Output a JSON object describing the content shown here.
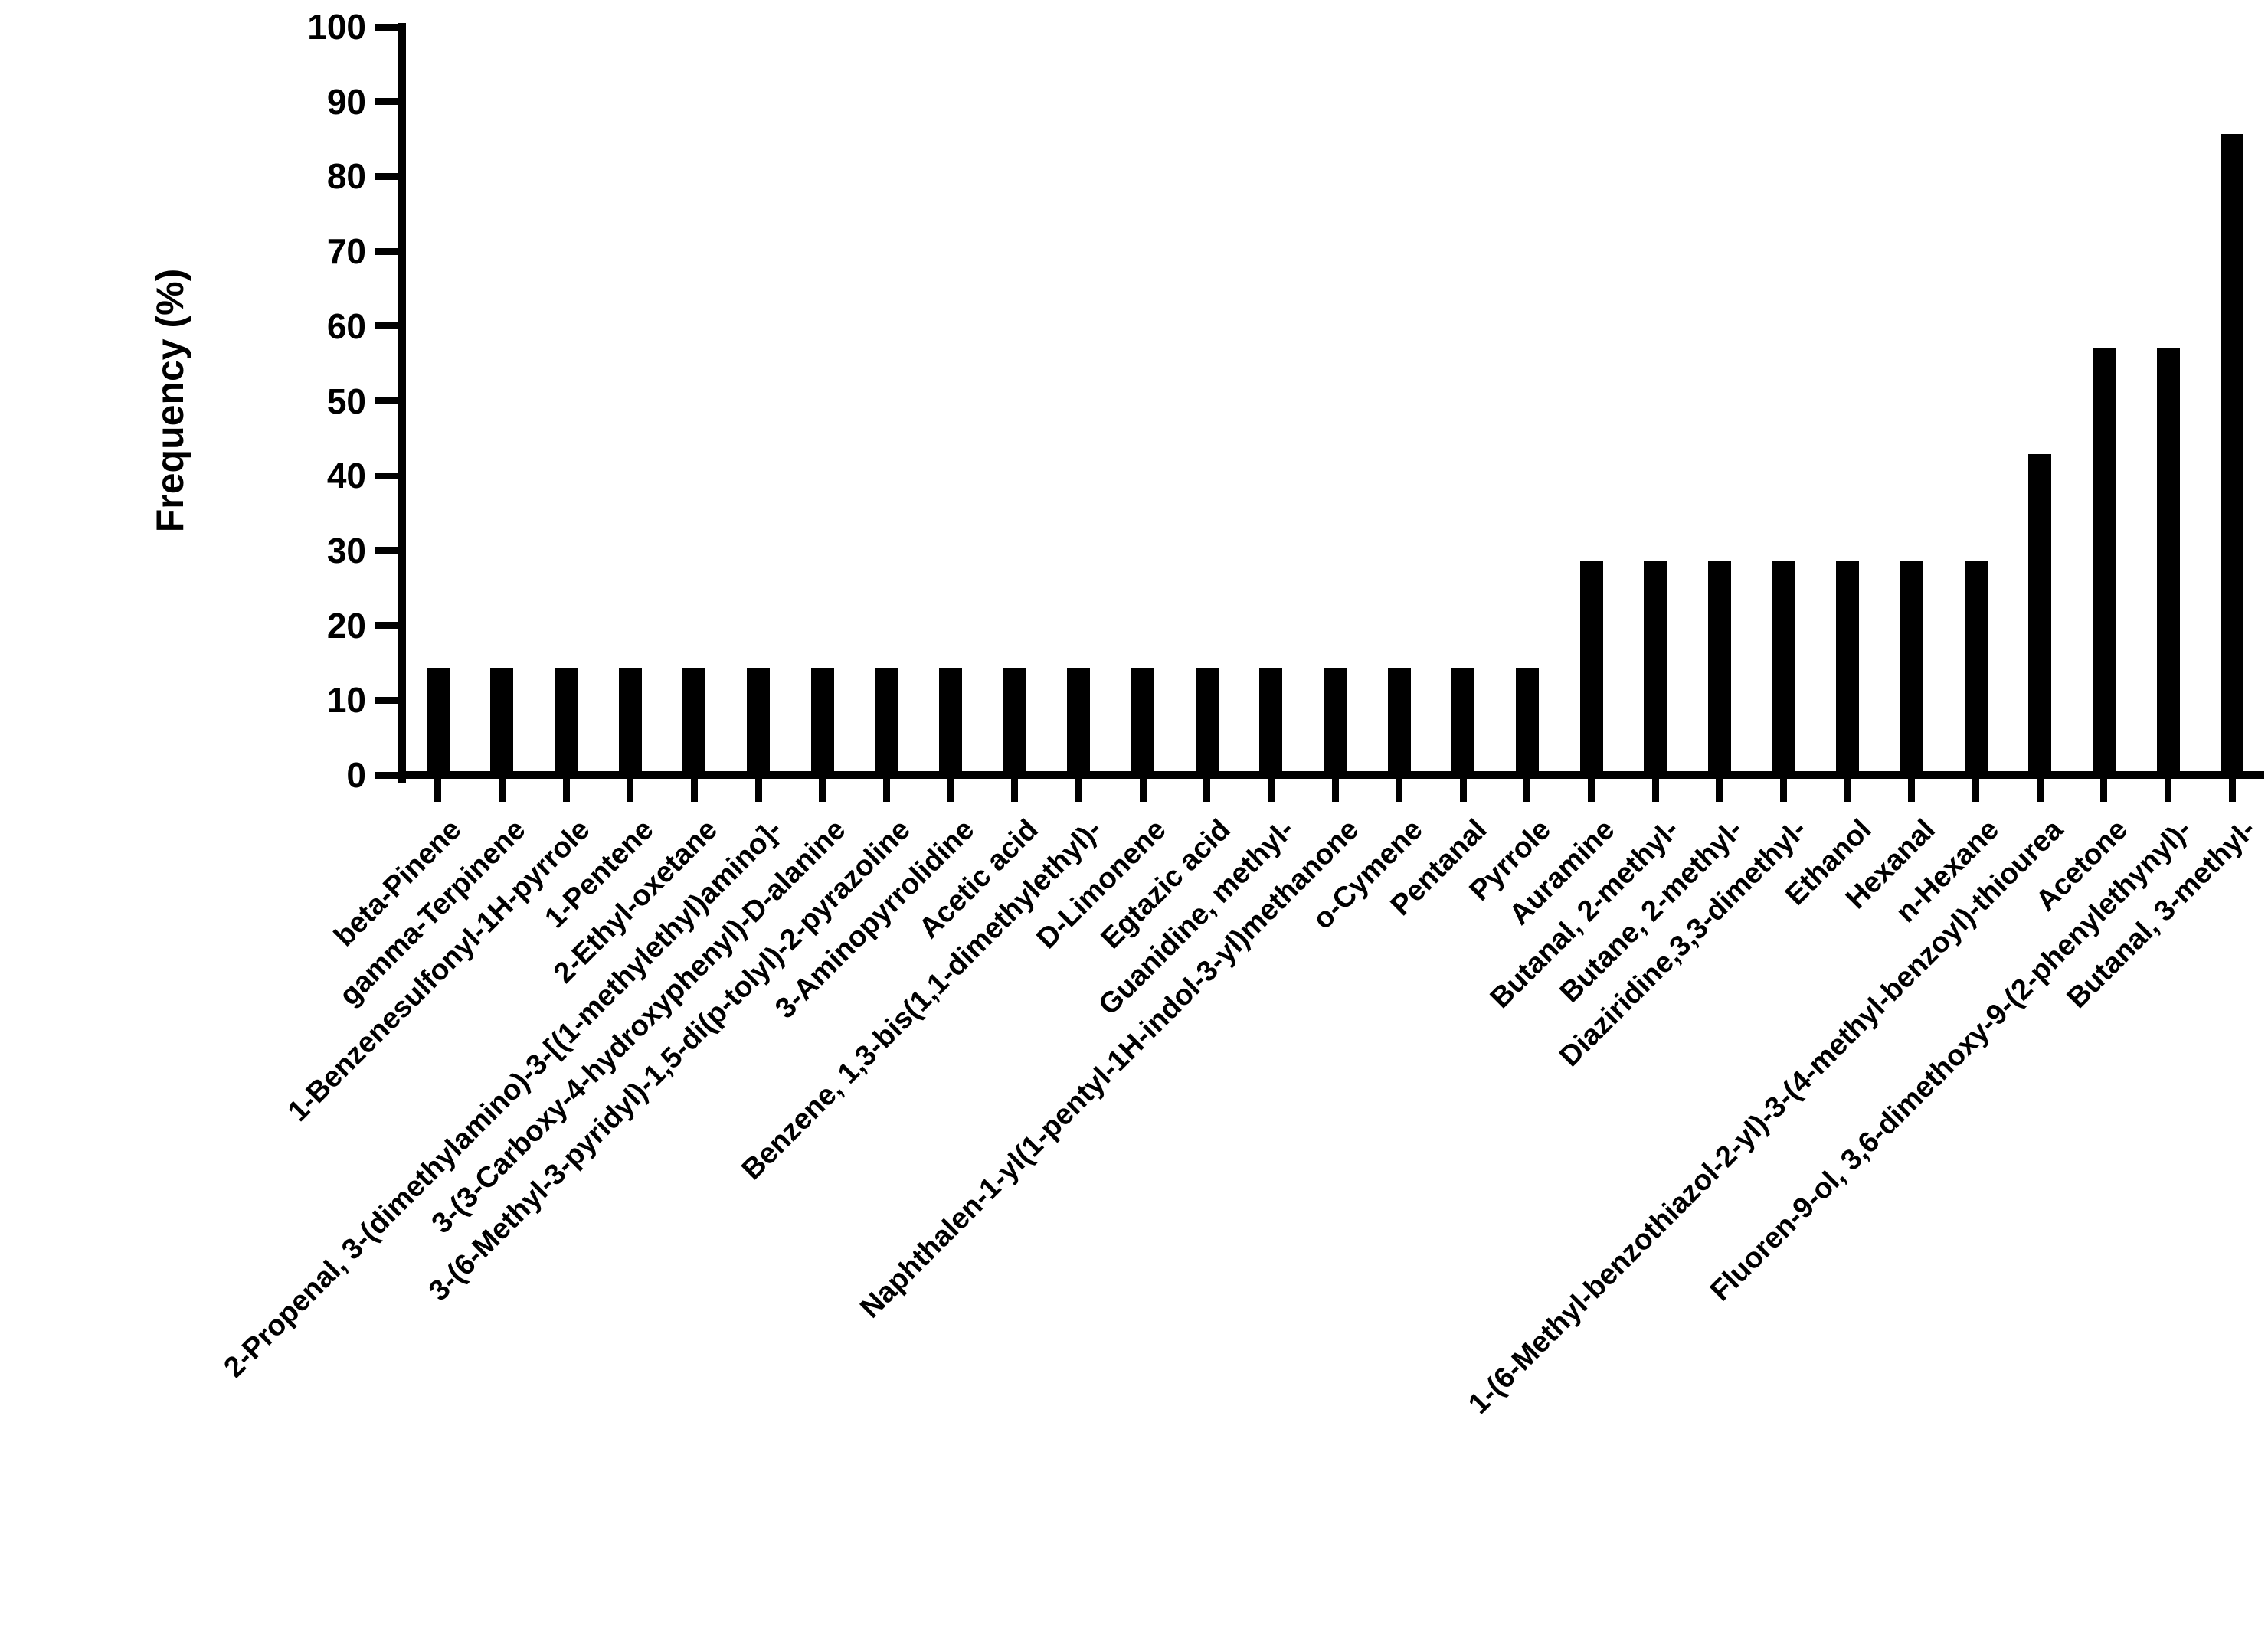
{
  "chart_data": {
    "type": "bar",
    "title": "",
    "xlabel": "",
    "ylabel": "Frequency (%)",
    "ylim": [
      0,
      100
    ],
    "yticks": [
      0,
      10,
      20,
      30,
      40,
      50,
      60,
      70,
      80,
      90,
      100
    ],
    "grid": "off",
    "legend": "none",
    "bar_color": "#000000",
    "axis_color": "#000000",
    "background_color": "#ffffff",
    "categories": [
      "beta-Pinene",
      "gamma-Terpinene",
      "1-Benzenesulfonyl-1H-pyrrole",
      "1-Pentene",
      "2-Ethyl-oxetane",
      "2-Propenal, 3-(dimethylamino)-3-[(1-methylethyl)amino]-",
      "3-(3-Carboxy-4-hydroxyphenyl)-D-alanine",
      "3-(6-Methyl-3-pyridyl)-1,5-di(p-tolyl)-2-pyrazoline",
      "3-Aminopyrrolidine",
      "Acetic acid",
      "Benzene, 1,3-bis(1,1-dimethylethyl)-",
      "D-Limonene",
      "Egtazic acid",
      "Guanidine, methyl-",
      "Naphthalen-1-yl(1-pentyl-1H-indol-3-yl)methanone",
      "o-Cymene",
      "Pentanal",
      "Pyrrole",
      "Auramine",
      "Butanal, 2-methyl-",
      "Butane, 2-methyl-",
      "Diaziridine,3,3-dimethyl-",
      "Ethanol",
      "Hexanal",
      "n-Hexane",
      "1-(6-Methyl-benzothiazol-2-yl)-3-(4-methyl-benzoyl)-thiourea",
      "Acetone",
      "Fluoren-9-ol, 3,6-dimethoxy-9-(2-phenylethynyl)-",
      "Butanal, 3-methyl-"
    ],
    "values": [
      14.3,
      14.3,
      14.3,
      14.3,
      14.3,
      14.3,
      14.3,
      14.3,
      14.3,
      14.3,
      14.3,
      14.3,
      14.3,
      14.3,
      14.3,
      14.3,
      14.3,
      14.3,
      28.6,
      28.6,
      28.6,
      28.6,
      28.6,
      28.6,
      28.6,
      42.9,
      57.1,
      57.1,
      85.7
    ]
  }
}
